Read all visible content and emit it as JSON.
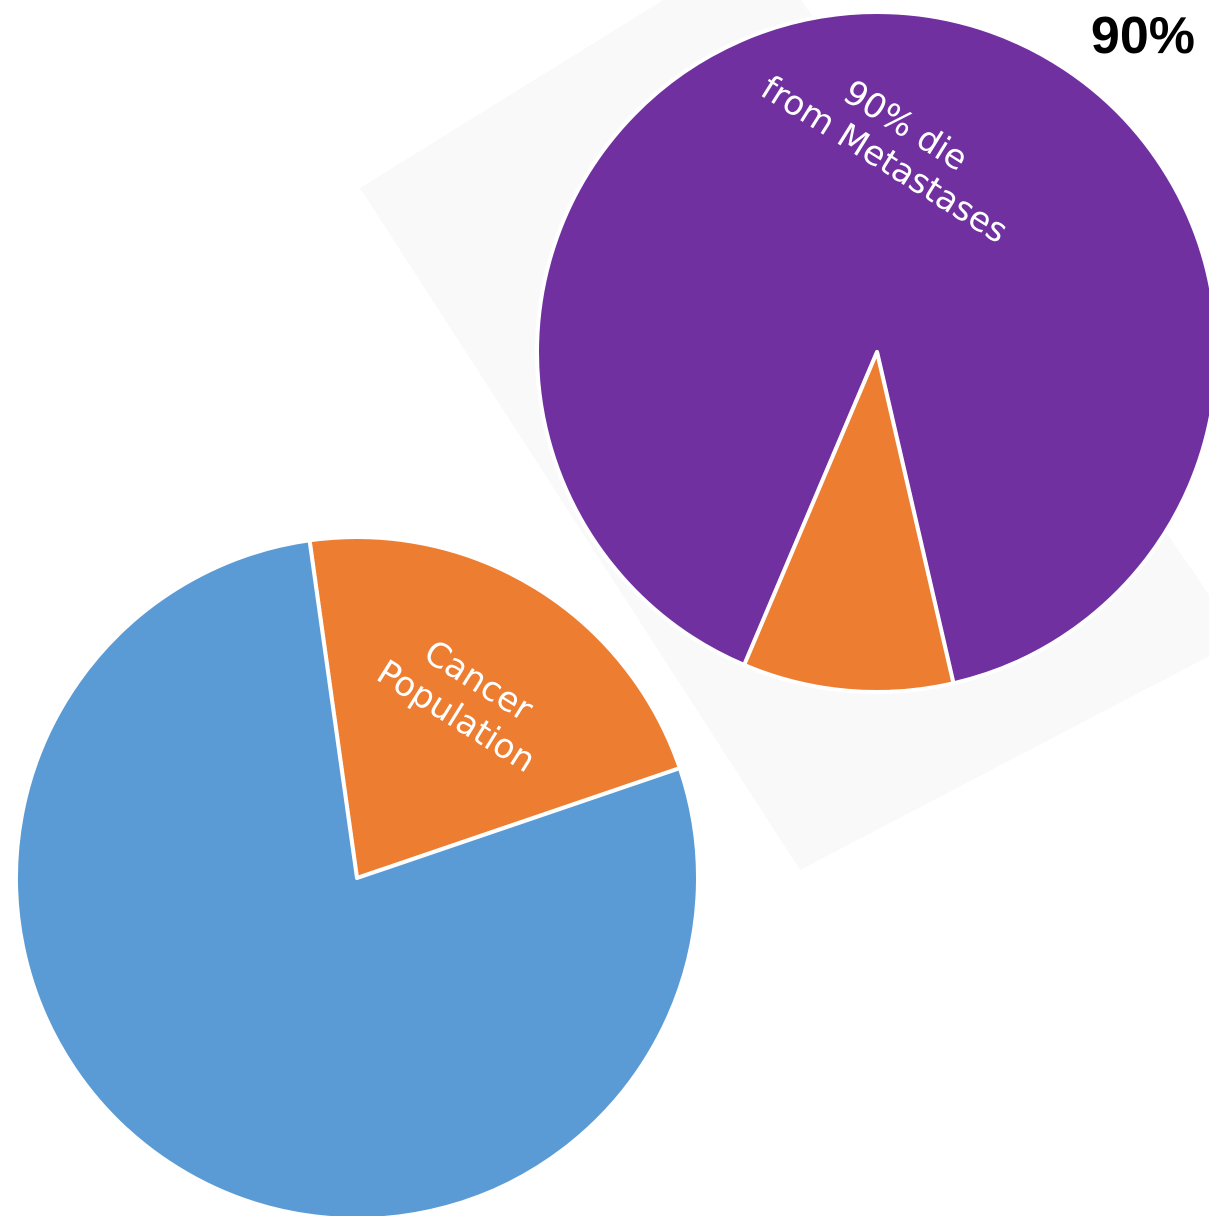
{
  "corner_label": "90%",
  "chart_data": [
    {
      "type": "pie",
      "slices": [
        {
          "label": "Cancer Population",
          "value": 22,
          "color": "#ED7D31",
          "label_lines": [
            "Cancer",
            "Population"
          ]
        },
        {
          "label": "",
          "value": 78,
          "color": "#5B9BD5"
        }
      ]
    },
    {
      "type": "pie",
      "slices": [
        {
          "label": "90% die from Metastases",
          "value": 90,
          "color": "#7030A0",
          "label_lines": [
            "90% die",
            "from Metastases"
          ]
        },
        {
          "label": "",
          "value": 10,
          "color": "#ED7D31"
        }
      ]
    }
  ]
}
